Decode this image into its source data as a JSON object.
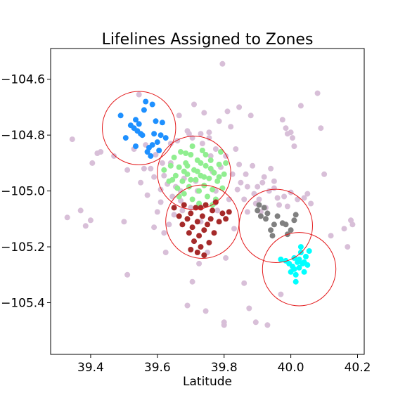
{
  "chart_data": {
    "type": "scatter",
    "title": "Lifelines Assigned to Zones",
    "xlabel": "Latitude",
    "ylabel": "",
    "xlim": [
      39.28,
      40.22
    ],
    "ylim": [
      -105.585,
      -104.49
    ],
    "x_ticks": [
      39.4,
      39.6,
      39.8,
      40.0,
      40.2
    ],
    "x_tick_labels": [
      "39.4",
      "39.6",
      "39.8",
      "40.0",
      "40.2"
    ],
    "y_ticks": [
      -104.6,
      -104.8,
      -105.0,
      -105.2,
      -105.4
    ],
    "y_tick_labels": [
      "−104.6",
      "−104.8",
      "−105.0",
      "−105.2",
      "−105.4"
    ],
    "grid": false,
    "legend": "none",
    "zone_circle_color": "#e31a1c",
    "zones": [
      {
        "center": [
          39.545,
          -104.775
        ],
        "radius": 0.11
      },
      {
        "center": [
          39.71,
          -104.935
        ],
        "radius": 0.11
      },
      {
        "center": [
          39.735,
          -105.11
        ],
        "radius": 0.11
      },
      {
        "center": [
          39.955,
          -105.125
        ],
        "radius": 0.11
      },
      {
        "center": [
          40.025,
          -105.28
        ],
        "radius": 0.11
      }
    ],
    "series": [
      {
        "color": "#d8bfd8",
        "points": [
          [
            39.33,
            -105.095
          ],
          [
            39.345,
            -104.815
          ],
          [
            39.37,
            -105.07
          ],
          [
            39.385,
            -105.125
          ],
          [
            39.4,
            -105.105
          ],
          [
            39.405,
            -104.9
          ],
          [
            39.42,
            -104.865
          ],
          [
            39.43,
            -104.86
          ],
          [
            39.47,
            -104.875
          ],
          [
            39.5,
            -105.11
          ],
          [
            39.51,
            -105.3
          ],
          [
            39.51,
            -104.925
          ],
          [
            39.53,
            -104.85
          ],
          [
            39.545,
            -104.655
          ],
          [
            39.55,
            -104.97
          ],
          [
            39.56,
            -104.92
          ],
          [
            39.565,
            -104.835
          ],
          [
            39.57,
            -105.015
          ],
          [
            39.58,
            -104.92
          ],
          [
            39.59,
            -105.13
          ],
          [
            39.59,
            -104.95
          ],
          [
            39.6,
            -105.075
          ],
          [
            39.61,
            -105.04
          ],
          [
            39.61,
            -104.995
          ],
          [
            39.615,
            -104.9
          ],
          [
            39.62,
            -105.15
          ],
          [
            39.625,
            -105.22
          ],
          [
            39.63,
            -104.975
          ],
          [
            39.635,
            -105.12
          ],
          [
            39.64,
            -104.9
          ],
          [
            39.64,
            -104.83
          ],
          [
            39.65,
            -105.085
          ],
          [
            39.655,
            -104.985
          ],
          [
            39.66,
            -104.82
          ],
          [
            39.665,
            -104.73
          ],
          [
            39.67,
            -105.0
          ],
          [
            39.675,
            -105.07
          ],
          [
            39.68,
            -104.955
          ],
          [
            39.69,
            -105.41
          ],
          [
            39.695,
            -104.795
          ],
          [
            39.7,
            -105.06
          ],
          [
            39.705,
            -104.81
          ],
          [
            39.705,
            -105.325
          ],
          [
            39.71,
            -104.69
          ],
          [
            39.715,
            -104.965
          ],
          [
            39.72,
            -105.0
          ],
          [
            39.725,
            -105.26
          ],
          [
            39.73,
            -105.11
          ],
          [
            39.73,
            -104.795
          ],
          [
            39.735,
            -104.83
          ],
          [
            39.74,
            -104.72
          ],
          [
            39.745,
            -105.43
          ],
          [
            39.75,
            -105.22
          ],
          [
            39.755,
            -104.81
          ],
          [
            39.76,
            -104.875
          ],
          [
            39.765,
            -104.93
          ],
          [
            39.77,
            -105.045
          ],
          [
            39.775,
            -105.0
          ],
          [
            39.78,
            -105.07
          ],
          [
            39.785,
            -104.75
          ],
          [
            39.79,
            -104.915
          ],
          [
            39.795,
            -104.545
          ],
          [
            39.8,
            -105.47
          ],
          [
            39.8,
            -105.48
          ],
          [
            39.805,
            -105.24
          ],
          [
            39.81,
            -104.715
          ],
          [
            39.815,
            -105.03
          ],
          [
            39.82,
            -104.77
          ],
          [
            39.825,
            -104.94
          ],
          [
            39.83,
            -105.135
          ],
          [
            39.835,
            -104.85
          ],
          [
            39.84,
            -104.995
          ],
          [
            39.845,
            -104.7
          ],
          [
            39.85,
            -104.97
          ],
          [
            39.86,
            -105.03
          ],
          [
            39.86,
            -105.33
          ],
          [
            39.865,
            -104.94
          ],
          [
            39.87,
            -105.075
          ],
          [
            39.875,
            -105.42
          ],
          [
            39.88,
            -104.73
          ],
          [
            39.885,
            -104.91
          ],
          [
            39.89,
            -105.01
          ],
          [
            39.895,
            -105.47
          ],
          [
            39.9,
            -104.985
          ],
          [
            39.905,
            -105.03
          ],
          [
            39.91,
            -105.075
          ],
          [
            39.915,
            -104.97
          ],
          [
            39.92,
            -104.95
          ],
          [
            39.93,
            -105.48
          ],
          [
            39.935,
            -105.0
          ],
          [
            39.94,
            -104.92
          ],
          [
            39.95,
            -104.99
          ],
          [
            39.96,
            -105.025
          ],
          [
            39.965,
            -105.05
          ],
          [
            39.97,
            -105.37
          ],
          [
            39.975,
            -104.745
          ],
          [
            39.98,
            -105.02
          ],
          [
            39.985,
            -104.775
          ],
          [
            39.99,
            -105.055
          ],
          [
            40.0,
            -105.005
          ],
          [
            40.0,
            -104.79
          ],
          [
            40.005,
            -104.81
          ],
          [
            40.01,
            -104.84
          ],
          [
            40.02,
            -105.03
          ],
          [
            40.03,
            -104.695
          ],
          [
            40.04,
            -105.025
          ],
          [
            40.05,
            -105.01
          ],
          [
            40.06,
            -105.045
          ],
          [
            40.08,
            -104.65
          ],
          [
            40.09,
            -104.775
          ],
          [
            40.1,
            -104.94
          ],
          [
            40.12,
            -105.16
          ],
          [
            40.16,
            -105.135
          ],
          [
            40.17,
            -105.2
          ],
          [
            40.18,
            -105.105
          ],
          [
            40.185,
            -105.12
          ],
          [
            39.595,
            -104.87
          ],
          [
            39.62,
            -104.945
          ],
          [
            39.645,
            -105.02
          ],
          [
            39.67,
            -105.035
          ],
          [
            39.69,
            -104.785
          ],
          [
            39.755,
            -104.79
          ],
          [
            39.775,
            -104.85
          ],
          [
            39.805,
            -104.875
          ],
          [
            39.845,
            -104.905
          ],
          [
            39.87,
            -104.985
          ],
          [
            39.895,
            -105.045
          ],
          [
            39.925,
            -105.06
          ],
          [
            39.95,
            -104.965
          ],
          [
            39.99,
            -104.795
          ]
        ]
      },
      {
        "color": "#1e90ff",
        "points": [
          [
            39.49,
            -104.73
          ],
          [
            39.505,
            -104.81
          ],
          [
            39.52,
            -104.765
          ],
          [
            39.53,
            -104.775
          ],
          [
            39.535,
            -104.745
          ],
          [
            39.54,
            -104.785
          ],
          [
            39.545,
            -104.76
          ],
          [
            39.55,
            -104.795
          ],
          [
            39.555,
            -104.8
          ],
          [
            39.56,
            -104.71
          ],
          [
            39.565,
            -104.68
          ],
          [
            39.57,
            -104.86
          ],
          [
            39.575,
            -104.845
          ],
          [
            39.58,
            -104.875
          ],
          [
            39.585,
            -104.835
          ],
          [
            39.59,
            -104.795
          ],
          [
            39.595,
            -104.75
          ],
          [
            39.6,
            -104.825
          ],
          [
            39.605,
            -104.855
          ],
          [
            39.61,
            -104.8
          ],
          [
            39.615,
            -104.755
          ],
          [
            39.625,
            -104.81
          ],
          [
            39.585,
            -104.69
          ],
          [
            39.535,
            -104.84
          ]
        ]
      },
      {
        "color": "#90ee90",
        "points": [
          [
            39.62,
            -104.925
          ],
          [
            39.635,
            -104.965
          ],
          [
            39.64,
            -104.91
          ],
          [
            39.65,
            -104.88
          ],
          [
            39.655,
            -104.945
          ],
          [
            39.66,
            -104.99
          ],
          [
            39.665,
            -104.915
          ],
          [
            39.67,
            -104.86
          ],
          [
            39.675,
            -104.965
          ],
          [
            39.68,
            -105.01
          ],
          [
            39.685,
            -104.9
          ],
          [
            39.69,
            -104.94
          ],
          [
            39.695,
            -104.985
          ],
          [
            39.7,
            -104.87
          ],
          [
            39.705,
            -105.03
          ],
          [
            39.71,
            -104.925
          ],
          [
            39.715,
            -104.96
          ],
          [
            39.72,
            -104.89
          ],
          [
            39.725,
            -105.0
          ],
          [
            39.73,
            -104.945
          ],
          [
            39.735,
            -104.855
          ],
          [
            39.74,
            -104.98
          ],
          [
            39.745,
            -104.91
          ],
          [
            39.75,
            -105.02
          ],
          [
            39.755,
            -104.955
          ],
          [
            39.76,
            -104.89
          ],
          [
            39.765,
            -104.995
          ],
          [
            39.77,
            -104.935
          ],
          [
            39.775,
            -105.03
          ],
          [
            39.78,
            -104.965
          ],
          [
            39.785,
            -104.905
          ],
          [
            39.79,
            -104.86
          ],
          [
            39.795,
            -104.99
          ],
          [
            39.8,
            -104.94
          ],
          [
            39.805,
            -104.9
          ],
          [
            39.645,
            -104.96
          ],
          [
            39.665,
            -105.02
          ],
          [
            39.685,
            -104.865
          ],
          [
            39.705,
            -104.84
          ],
          [
            39.725,
            -105.045
          ],
          [
            39.745,
            -104.87
          ],
          [
            39.765,
            -105.05
          ],
          [
            39.785,
            -104.95
          ],
          [
            39.7,
            -104.96
          ],
          [
            39.72,
            -104.93
          ],
          [
            39.74,
            -104.95
          ],
          [
            39.68,
            -104.93
          ],
          [
            39.76,
            -104.92
          ],
          [
            39.69,
            -104.91
          ],
          [
            39.73,
            -104.9
          ]
        ]
      },
      {
        "color": "#a52a2a",
        "points": [
          [
            39.65,
            -105.06
          ],
          [
            39.665,
            -105.09
          ],
          [
            39.675,
            -105.12
          ],
          [
            39.68,
            -105.05
          ],
          [
            39.69,
            -105.1
          ],
          [
            39.695,
            -105.15
          ],
          [
            39.7,
            -105.08
          ],
          [
            39.705,
            -105.13
          ],
          [
            39.71,
            -105.18
          ],
          [
            39.715,
            -105.06
          ],
          [
            39.72,
            -105.11
          ],
          [
            39.725,
            -105.16
          ],
          [
            39.73,
            -105.2
          ],
          [
            39.735,
            -105.09
          ],
          [
            39.74,
            -105.14
          ],
          [
            39.745,
            -105.05
          ],
          [
            39.75,
            -105.12
          ],
          [
            39.755,
            -105.185
          ],
          [
            39.76,
            -105.1
          ],
          [
            39.765,
            -105.07
          ],
          [
            39.77,
            -105.15
          ],
          [
            39.775,
            -105.04
          ],
          [
            39.785,
            -105.11
          ],
          [
            39.795,
            -105.08
          ],
          [
            39.805,
            -105.1
          ],
          [
            39.815,
            -105.075
          ],
          [
            39.7,
            -105.21
          ],
          [
            39.72,
            -105.22
          ],
          [
            39.74,
            -105.23
          ],
          [
            39.73,
            -105.06
          ]
        ]
      },
      {
        "color": "#808080",
        "points": [
          [
            39.9,
            -105.07
          ],
          [
            39.91,
            -105.09
          ],
          [
            39.92,
            -105.06
          ],
          [
            39.925,
            -105.1
          ],
          [
            39.93,
            -105.08
          ],
          [
            39.94,
            -105.14
          ],
          [
            39.945,
            -105.16
          ],
          [
            39.95,
            -105.12
          ],
          [
            39.96,
            -105.09
          ],
          [
            39.975,
            -105.115
          ],
          [
            39.985,
            -105.12
          ],
          [
            39.99,
            -105.155
          ],
          [
            40.0,
            -105.14
          ],
          [
            40.01,
            -105.105
          ],
          [
            40.015,
            -105.085
          ],
          [
            39.905,
            -105.05
          ]
        ]
      },
      {
        "color": "#00ffff",
        "points": [
          [
            39.97,
            -105.245
          ],
          [
            39.985,
            -105.25
          ],
          [
            39.995,
            -105.26
          ],
          [
            40.0,
            -105.29
          ],
          [
            40.005,
            -105.27
          ],
          [
            40.01,
            -105.24
          ],
          [
            40.015,
            -105.3
          ],
          [
            40.02,
            -105.255
          ],
          [
            40.025,
            -105.275
          ],
          [
            40.03,
            -105.22
          ],
          [
            40.035,
            -105.26
          ],
          [
            40.04,
            -105.29
          ],
          [
            40.045,
            -105.235
          ],
          [
            40.05,
            -105.265
          ],
          [
            40.055,
            -105.215
          ],
          [
            40.03,
            -105.2
          ],
          [
            40.015,
            -105.325
          ],
          [
            40.04,
            -105.255
          ],
          [
            40.025,
            -105.245
          ],
          [
            40.01,
            -105.28
          ]
        ]
      }
    ]
  }
}
